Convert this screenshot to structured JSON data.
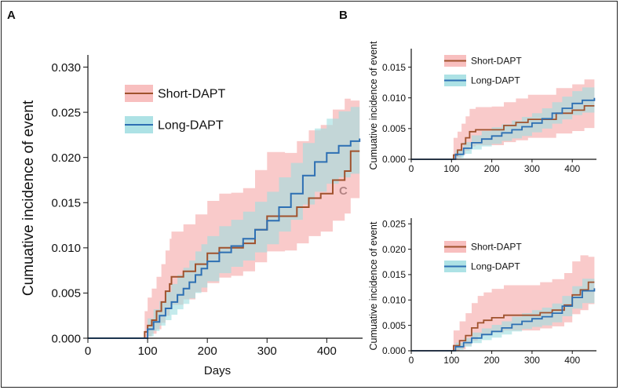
{
  "colors": {
    "short_line": "#a0522d",
    "short_band": "#f7b4b4",
    "long_line": "#2d6fb3",
    "long_band": "#9fdde0"
  },
  "chart_data": [
    {
      "panel": "A",
      "type": "line",
      "xlabel": "Days",
      "ylabel": "Cumuative incidence of event",
      "xlim": [
        0,
        460
      ],
      "ylim": [
        0,
        0.031
      ],
      "x_ticks": [
        0,
        100,
        200,
        300,
        400
      ],
      "x_tick_labels": [
        "0",
        "100",
        "200",
        "300",
        "400"
      ],
      "y_ticks": [
        0,
        0.005,
        0.01,
        0.015,
        0.02,
        0.025,
        0.03
      ],
      "y_tick_labels": [
        "0.000",
        "0.005",
        "0.010",
        "0.015",
        "0.020",
        "0.025",
        "0.030"
      ],
      "legend_position": "top-center",
      "series": [
        {
          "name": "Short-DAPT",
          "x": [
            0,
            90,
            95,
            100,
            107,
            115,
            123,
            130,
            137,
            140,
            160,
            180,
            200,
            220,
            240,
            260,
            280,
            300,
            330,
            350,
            370,
            390,
            410,
            430,
            440,
            455
          ],
          "y": [
            0,
            0,
            0.0007,
            0.0014,
            0.002,
            0.003,
            0.004,
            0.0052,
            0.006,
            0.0068,
            0.0074,
            0.0082,
            0.0094,
            0.01,
            0.01,
            0.0105,
            0.012,
            0.0135,
            0.0135,
            0.0145,
            0.0155,
            0.016,
            0.0175,
            0.0185,
            0.0207,
            0.0207
          ],
          "lower": [
            0,
            0,
            0,
            0.0002,
            0.0005,
            0.001,
            0.0017,
            0.0025,
            0.0033,
            0.0037,
            0.0043,
            0.0051,
            0.0061,
            0.0067,
            0.0069,
            0.0074,
            0.0084,
            0.0096,
            0.0097,
            0.0105,
            0.0113,
            0.0118,
            0.013,
            0.0138,
            0.0155,
            0.0155
          ],
          "upper": [
            0,
            0,
            0.003,
            0.0045,
            0.0055,
            0.0068,
            0.0082,
            0.0097,
            0.011,
            0.0118,
            0.0126,
            0.0137,
            0.0152,
            0.016,
            0.0161,
            0.0166,
            0.0186,
            0.0206,
            0.0205,
            0.0218,
            0.023,
            0.0236,
            0.0253,
            0.0265,
            0.0263,
            0.0263
          ]
        },
        {
          "name": "Long-DAPT",
          "x": [
            0,
            90,
            100,
            110,
            120,
            130,
            140,
            150,
            160,
            170,
            180,
            190,
            200,
            220,
            240,
            260,
            280,
            300,
            320,
            340,
            360,
            380,
            400,
            420,
            440,
            455
          ],
          "y": [
            0,
            0,
            0.001,
            0.0018,
            0.0025,
            0.0033,
            0.004,
            0.0048,
            0.0055,
            0.0062,
            0.007,
            0.0077,
            0.0085,
            0.0095,
            0.0102,
            0.011,
            0.012,
            0.013,
            0.0145,
            0.016,
            0.018,
            0.0195,
            0.0205,
            0.0213,
            0.0218,
            0.0221
          ],
          "lower": [
            0,
            0,
            0.0002,
            0.0008,
            0.0014,
            0.002,
            0.0026,
            0.0032,
            0.0038,
            0.0044,
            0.005,
            0.0056,
            0.0063,
            0.0072,
            0.0079,
            0.0086,
            0.0095,
            0.0104,
            0.0118,
            0.0131,
            0.0148,
            0.0162,
            0.0171,
            0.0178,
            0.0182,
            0.0184
          ],
          "upper": [
            0,
            0,
            0.0022,
            0.0032,
            0.0041,
            0.0051,
            0.006,
            0.007,
            0.0078,
            0.0086,
            0.0096,
            0.0104,
            0.0113,
            0.0124,
            0.0131,
            0.014,
            0.0151,
            0.0162,
            0.0178,
            0.0194,
            0.0216,
            0.0232,
            0.0243,
            0.0251,
            0.0256,
            0.026
          ]
        }
      ]
    },
    {
      "panel": "B",
      "type": "line",
      "xlabel": "",
      "ylabel": "Cumuative incidence of event",
      "xlim": [
        0,
        460
      ],
      "ylim": [
        0,
        0.0175
      ],
      "x_ticks": [
        0,
        100,
        200,
        300,
        400
      ],
      "x_tick_labels": [
        "0",
        "100",
        "200",
        "300",
        "400"
      ],
      "y_ticks": [
        0,
        0.005,
        0.01,
        0.015
      ],
      "y_tick_labels": [
        "0.000",
        "0.005",
        "0.010",
        "0.015"
      ],
      "legend_position": "top-left",
      "series": [
        {
          "name": "Short-DAPT",
          "x": [
            0,
            95,
            105,
            115,
            125,
            135,
            145,
            160,
            200,
            230,
            260,
            290,
            320,
            360,
            400,
            430,
            455
          ],
          "y": [
            0,
            0,
            0.0007,
            0.0015,
            0.0025,
            0.0035,
            0.0045,
            0.0048,
            0.0048,
            0.0055,
            0.006,
            0.0065,
            0.0065,
            0.0075,
            0.008,
            0.0087,
            0.0087
          ],
          "lower": [
            0,
            0,
            0,
            0.0002,
            0.0008,
            0.0014,
            0.0021,
            0.0023,
            0.0023,
            0.0028,
            0.0031,
            0.0035,
            0.0035,
            0.0042,
            0.0046,
            0.0051,
            0.0051
          ],
          "upper": [
            0,
            0,
            0.0035,
            0.0045,
            0.0058,
            0.007,
            0.0082,
            0.0085,
            0.0086,
            0.0093,
            0.0099,
            0.0105,
            0.0105,
            0.0116,
            0.0122,
            0.013,
            0.013
          ]
        },
        {
          "name": "Long-DAPT",
          "x": [
            0,
            95,
            110,
            130,
            150,
            175,
            200,
            225,
            250,
            275,
            300,
            325,
            350,
            375,
            400,
            425,
            455
          ],
          "y": [
            0,
            0,
            0.0008,
            0.0018,
            0.0027,
            0.0033,
            0.0038,
            0.0043,
            0.0048,
            0.0053,
            0.0059,
            0.0066,
            0.0075,
            0.0083,
            0.0091,
            0.0096,
            0.01
          ],
          "lower": [
            0,
            0,
            0.0002,
            0.0009,
            0.0016,
            0.0021,
            0.0025,
            0.003,
            0.0034,
            0.0038,
            0.0044,
            0.005,
            0.0058,
            0.0065,
            0.0072,
            0.0076,
            0.0079
          ],
          "upper": [
            0,
            0,
            0.0015,
            0.0028,
            0.0039,
            0.0046,
            0.0052,
            0.0057,
            0.0063,
            0.0069,
            0.0075,
            0.0083,
            0.0093,
            0.0102,
            0.0111,
            0.0117,
            0.0122
          ]
        }
      ]
    },
    {
      "panel": "C",
      "type": "line",
      "xlabel": "",
      "ylabel": "Cumuative incidence of event",
      "xlim": [
        0,
        460
      ],
      "ylim": [
        0,
        0.0255
      ],
      "x_ticks": [
        0,
        100,
        200,
        300,
        400
      ],
      "x_tick_labels": [
        "0",
        "100",
        "200",
        "300",
        "400"
      ],
      "y_ticks": [
        0,
        0.005,
        0.01,
        0.015,
        0.02,
        0.025
      ],
      "y_tick_labels": [
        "0.000",
        "0.005",
        "0.010",
        "0.015",
        "0.020",
        "0.025"
      ],
      "legend_position": "top-left",
      "series": [
        {
          "name": "Short-DAPT",
          "x": [
            0,
            95,
            105,
            120,
            135,
            150,
            165,
            180,
            200,
            230,
            260,
            290,
            320,
            350,
            380,
            400,
            420,
            440,
            455
          ],
          "y": [
            0,
            0,
            0.001,
            0.002,
            0.003,
            0.0045,
            0.0055,
            0.006,
            0.0065,
            0.007,
            0.007,
            0.007,
            0.0075,
            0.008,
            0.009,
            0.011,
            0.012,
            0.0135,
            0.0135
          ],
          "lower": [
            0,
            0,
            0,
            0.0003,
            0.001,
            0.002,
            0.0028,
            0.0032,
            0.0036,
            0.004,
            0.004,
            0.004,
            0.0044,
            0.0048,
            0.0056,
            0.0072,
            0.008,
            0.0092,
            0.0092
          ],
          "upper": [
            0,
            0,
            0.004,
            0.0058,
            0.0074,
            0.0094,
            0.0108,
            0.0115,
            0.0122,
            0.0129,
            0.0129,
            0.0129,
            0.0135,
            0.0141,
            0.0153,
            0.0176,
            0.0188,
            0.0185,
            0.0185
          ]
        },
        {
          "name": "Long-DAPT",
          "x": [
            0,
            95,
            110,
            130,
            150,
            175,
            200,
            225,
            250,
            275,
            300,
            325,
            350,
            375,
            400,
            425,
            455
          ],
          "y": [
            0,
            0,
            0.0008,
            0.0016,
            0.0025,
            0.0032,
            0.0038,
            0.0045,
            0.0052,
            0.0058,
            0.0063,
            0.0067,
            0.0074,
            0.0088,
            0.0105,
            0.0118,
            0.0123
          ],
          "lower": [
            0,
            0,
            0.0002,
            0.0008,
            0.0015,
            0.0021,
            0.0026,
            0.0032,
            0.0038,
            0.0043,
            0.0047,
            0.005,
            0.0056,
            0.0068,
            0.0083,
            0.0094,
            0.0098
          ],
          "upper": [
            0,
            0,
            0.0016,
            0.0025,
            0.0036,
            0.0044,
            0.0051,
            0.0058,
            0.0067,
            0.0074,
            0.008,
            0.0085,
            0.0093,
            0.0108,
            0.0127,
            0.0142,
            0.0148
          ]
        }
      ]
    }
  ]
}
